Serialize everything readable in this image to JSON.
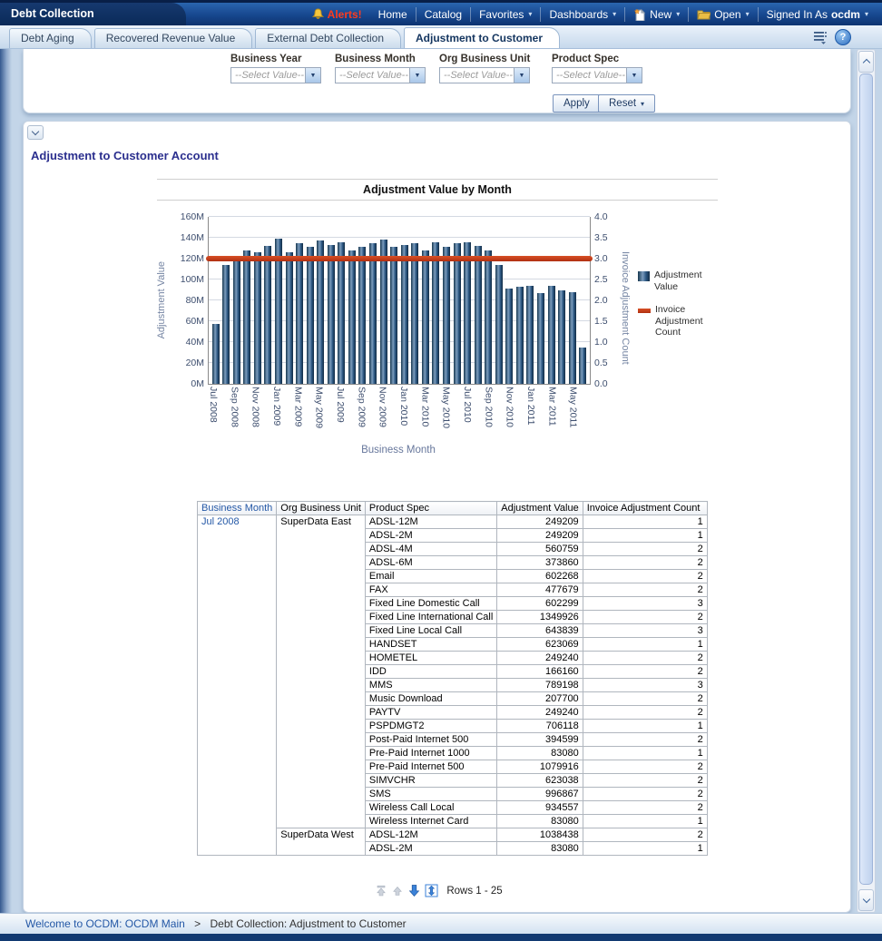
{
  "colors": {
    "header_navy": "#0e2f63",
    "header_blue": "#1c4f9c",
    "link_blue": "#2458a6",
    "alert_red": "#e03616",
    "bar_blue": "#24527c",
    "line_red": "#c23b18",
    "section_title_indigo": "#2b2f8e"
  },
  "glyphs": {
    "caret": "▾",
    "dropdown": "▼",
    "help": "?"
  },
  "topbar": {
    "brand": "Debt Collection",
    "items": [
      {
        "id": "alerts",
        "label": "Alerts!",
        "icon": "bell",
        "red": true
      },
      {
        "id": "home",
        "label": "Home"
      },
      {
        "id": "catalog",
        "label": "Catalog"
      },
      {
        "id": "favorites",
        "label": "Favorites",
        "caret": true
      },
      {
        "id": "dashboards",
        "label": "Dashboards",
        "caret": true
      },
      {
        "id": "new",
        "label": "New",
        "icon": "new-document",
        "caret": true
      },
      {
        "id": "open",
        "label": "Open",
        "icon": "open-folder",
        "caret": true
      },
      {
        "id": "signed-in",
        "label": "Signed In As",
        "user": "ocdm",
        "caret": true
      }
    ]
  },
  "tabstrip": {
    "tabs": [
      {
        "label": "Debt Aging",
        "active": false
      },
      {
        "label": "Recovered Revenue Value",
        "active": false
      },
      {
        "label": "External Debt Collection",
        "active": false
      },
      {
        "label": "Adjustment to Customer",
        "active": true
      }
    ]
  },
  "filters": {
    "prompts": [
      {
        "label": "Business Year",
        "value": "--Select Value--"
      },
      {
        "label": "Business Month",
        "value": "--Select Value--"
      },
      {
        "label": "Org Business Unit",
        "value": "--Select Value--"
      },
      {
        "label": "Product Spec",
        "value": "--Select Value--"
      }
    ],
    "apply_label": "Apply",
    "reset_label": "Reset"
  },
  "section_title": "Adjustment to Customer Account",
  "chart_data": {
    "type": "bar",
    "title": "Adjustment Value by Month",
    "xlabel": "Business Month",
    "ylabel_left": "Adjustment Value",
    "ylabel_right": "Invoice Adjustment Count",
    "ylim_left": [
      0,
      160
    ],
    "ylim_right": [
      0,
      4
    ],
    "yticks_left": [
      "0M",
      "20M",
      "40M",
      "60M",
      "80M",
      "100M",
      "120M",
      "140M",
      "160M"
    ],
    "yticks_right": [
      "0.0",
      "0.5",
      "1.0",
      "1.5",
      "2.0",
      "2.5",
      "3.0",
      "3.5",
      "4.0"
    ],
    "grid": true,
    "legend_position": "right",
    "categories": [
      "Jul 2008",
      "Aug 2008",
      "Sep 2008",
      "Oct 2008",
      "Nov 2008",
      "Dec 2008",
      "Jan 2009",
      "Feb 2009",
      "Mar 2009",
      "Apr 2009",
      "May 2009",
      "Jun 2009",
      "Jul 2009",
      "Aug 2009",
      "Sep 2009",
      "Oct 2009",
      "Nov 2009",
      "Dec 2009",
      "Jan 2010",
      "Feb 2010",
      "Mar 2010",
      "Apr 2010",
      "May 2010",
      "Jun 2010",
      "Jul 2010",
      "Aug 2010",
      "Sep 2010",
      "Oct 2010",
      "Nov 2010",
      "Dec 2010",
      "Jan 2011",
      "Feb 2011",
      "Mar 2011",
      "Apr 2011",
      "May 2011",
      "Jun 2011"
    ],
    "x_tick_labels": [
      "Jul 2008",
      "Sep 2008",
      "Nov 2008",
      "Jan 2009",
      "Mar 2009",
      "May 2009",
      "Jul 2009",
      "Sep 2009",
      "Nov 2009",
      "Jan 2010",
      "Mar 2010",
      "May 2010",
      "Jul 2010",
      "Sep 2010",
      "Nov 2010",
      "Jan 2011",
      "Mar 2011",
      "May 2011"
    ],
    "series": [
      {
        "name": "Adjustment Value",
        "type": "bar",
        "axis": "left",
        "unit": "millions",
        "color": "#24527c",
        "values": [
          57,
          114,
          117,
          128,
          126,
          132,
          139,
          126,
          135,
          131,
          137,
          133,
          136,
          128,
          131,
          135,
          138,
          131,
          133,
          135,
          128,
          136,
          131,
          135,
          136,
          132,
          128,
          114,
          91,
          93,
          94,
          87,
          94,
          90,
          88,
          35
        ]
      },
      {
        "name": "Invoice Adjustment Count",
        "type": "line",
        "axis": "right",
        "color": "#c23b18",
        "values": [
          3,
          3,
          3,
          3,
          3,
          3,
          3,
          3,
          3,
          3,
          3,
          3,
          3,
          3,
          3,
          3,
          3,
          3,
          3,
          3,
          3,
          3,
          3,
          3,
          3,
          3,
          3,
          3,
          3,
          3,
          3,
          3,
          3,
          3,
          3,
          3
        ]
      }
    ],
    "legend": [
      {
        "label": "Adjustment Value",
        "swatch": "bar"
      },
      {
        "label": "Invoice Adjustment Count",
        "swatch": "line"
      }
    ]
  },
  "table": {
    "columns": [
      "Business Month",
      "Org Business Unit",
      "Product Spec",
      "Adjustment Value",
      "Invoice Adjustment Count"
    ],
    "business_month": "Jul 2008",
    "org_groups": [
      {
        "org": "SuperData East",
        "rows": [
          [
            "ADSL-12M",
            "249209",
            "1"
          ],
          [
            "ADSL-2M",
            "249209",
            "1"
          ],
          [
            "ADSL-4M",
            "560759",
            "2"
          ],
          [
            "ADSL-6M",
            "373860",
            "2"
          ],
          [
            "Email",
            "602268",
            "2"
          ],
          [
            "FAX",
            "477679",
            "2"
          ],
          [
            "Fixed Line Domestic Call",
            "602299",
            "3"
          ],
          [
            "Fixed Line International Call",
            "1349926",
            "2"
          ],
          [
            "Fixed Line Local Call",
            "643839",
            "3"
          ],
          [
            "HANDSET",
            "623069",
            "1"
          ],
          [
            "HOMETEL",
            "249240",
            "2"
          ],
          [
            "IDD",
            "166160",
            "2"
          ],
          [
            "MMS",
            "789198",
            "3"
          ],
          [
            "Music Download",
            "207700",
            "2"
          ],
          [
            "PAYTV",
            "249240",
            "2"
          ],
          [
            "PSPDMGT2",
            "706118",
            "1"
          ],
          [
            "Post-Paid Internet 500",
            "394599",
            "2"
          ],
          [
            "Pre-Paid Internet 1000",
            "83080",
            "1"
          ],
          [
            "Pre-Paid Internet 500",
            "1079916",
            "2"
          ],
          [
            "SIMVCHR",
            "623038",
            "2"
          ],
          [
            "SMS",
            "996867",
            "2"
          ],
          [
            "Wireless Call Local",
            "934557",
            "2"
          ],
          [
            "Wireless Internet Card",
            "83080",
            "1"
          ]
        ]
      },
      {
        "org": "SuperData West",
        "rows": [
          [
            "ADSL-12M",
            "1038438",
            "2"
          ],
          [
            "ADSL-2M",
            "83080",
            "1"
          ]
        ]
      }
    ]
  },
  "pagination": {
    "label": "Rows 1 - 25",
    "buttons": [
      "first-page",
      "previous-rows",
      "next-rows",
      "maximum-rows"
    ]
  },
  "footer": {
    "breadcrumb_link": "Welcome to OCDM: OCDM Main",
    "separator": ">",
    "current": "Debt Collection: Adjustment to Customer"
  }
}
